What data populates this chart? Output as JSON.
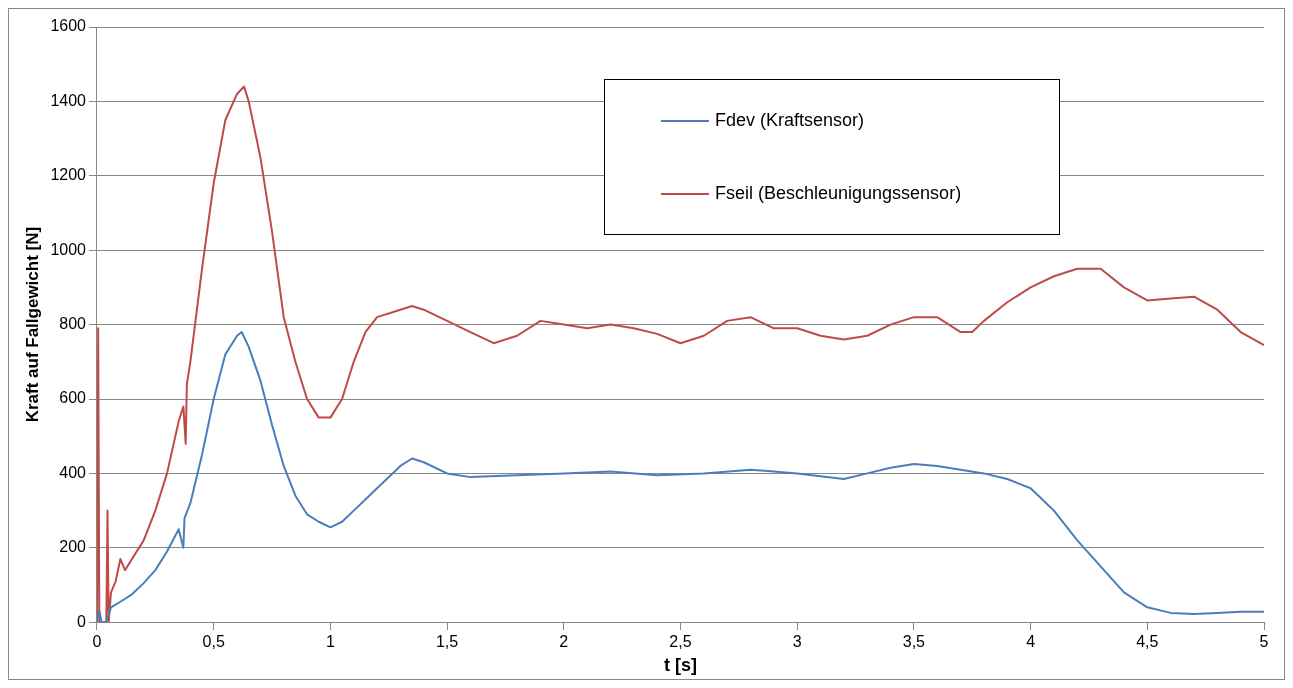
{
  "chart_data": {
    "type": "line",
    "xlabel": "t [s]",
    "ylabel": "Kraft auf Fallgewicht [N]",
    "xlim": [
      0,
      5
    ],
    "ylim": [
      0,
      1600
    ],
    "xticks": [
      0,
      {
        "value": 0.5,
        "label": "0,5"
      },
      1,
      {
        "value": 1.5,
        "label": "1,5"
      },
      2,
      {
        "value": 2.5,
        "label": "2,5"
      },
      3,
      {
        "value": 3.5,
        "label": "3,5"
      },
      4,
      {
        "value": 4.5,
        "label": "4,5"
      },
      5
    ],
    "yticks": [
      0,
      200,
      400,
      600,
      800,
      1000,
      1200,
      1400,
      1600
    ],
    "grid": "y",
    "legend": "top right",
    "marker": "none",
    "line_style": "solid",
    "series": [
      {
        "name": "Fdev (Kraftsensor)",
        "color": "#4a7ebb",
        "x": [
          0,
          0.01,
          0.02,
          0.04,
          0.06,
          0.1,
          0.15,
          0.2,
          0.25,
          0.3,
          0.35,
          0.37,
          0.375,
          0.4,
          0.45,
          0.5,
          0.55,
          0.6,
          0.62,
          0.65,
          0.7,
          0.75,
          0.8,
          0.85,
          0.9,
          0.95,
          1.0,
          1.05,
          1.1,
          1.2,
          1.3,
          1.35,
          1.4,
          1.5,
          1.6,
          1.8,
          2.0,
          2.2,
          2.4,
          2.6,
          2.8,
          3.0,
          3.2,
          3.3,
          3.4,
          3.5,
          3.6,
          3.7,
          3.8,
          3.9,
          4.0,
          4.1,
          4.2,
          4.3,
          4.4,
          4.5,
          4.6,
          4.7,
          4.8,
          4.9,
          5.0
        ],
        "values": [
          0,
          30,
          0,
          0,
          40,
          55,
          75,
          105,
          140,
          190,
          250,
          200,
          280,
          320,
          450,
          600,
          720,
          770,
          780,
          740,
          650,
          530,
          420,
          340,
          290,
          270,
          255,
          270,
          300,
          360,
          420,
          440,
          430,
          400,
          390,
          395,
          400,
          405,
          395,
          400,
          410,
          400,
          385,
          400,
          415,
          425,
          420,
          410,
          400,
          385,
          360,
          300,
          220,
          150,
          80,
          40,
          25,
          22,
          25,
          28,
          28
        ]
      },
      {
        "name": "Fseil (Beschleunigungssensor)",
        "color": "#be4b48",
        "x": [
          0,
          0.005,
          0.01,
          0.04,
          0.045,
          0.05,
          0.06,
          0.08,
          0.1,
          0.12,
          0.15,
          0.2,
          0.25,
          0.3,
          0.35,
          0.37,
          0.38,
          0.385,
          0.4,
          0.45,
          0.5,
          0.55,
          0.6,
          0.63,
          0.65,
          0.7,
          0.75,
          0.8,
          0.85,
          0.9,
          0.95,
          1.0,
          1.05,
          1.1,
          1.15,
          1.2,
          1.3,
          1.35,
          1.4,
          1.5,
          1.6,
          1.7,
          1.8,
          1.9,
          2.0,
          2.1,
          2.2,
          2.3,
          2.4,
          2.5,
          2.6,
          2.7,
          2.8,
          2.9,
          3.0,
          3.1,
          3.2,
          3.3,
          3.4,
          3.5,
          3.6,
          3.65,
          3.7,
          3.75,
          3.8,
          3.9,
          4.0,
          4.1,
          4.2,
          4.3,
          4.4,
          4.5,
          4.6,
          4.7,
          4.8,
          4.9,
          5.0
        ],
        "values": [
          0,
          790,
          0,
          0,
          300,
          0,
          80,
          110,
          170,
          140,
          170,
          220,
          300,
          400,
          540,
          580,
          480,
          640,
          700,
          950,
          1180,
          1350,
          1420,
          1440,
          1400,
          1250,
          1050,
          820,
          700,
          600,
          550,
          550,
          600,
          700,
          780,
          820,
          840,
          850,
          840,
          810,
          780,
          750,
          770,
          810,
          800,
          790,
          800,
          790,
          775,
          750,
          770,
          810,
          820,
          790,
          790,
          770,
          760,
          770,
          800,
          820,
          820,
          800,
          780,
          780,
          810,
          860,
          900,
          930,
          950,
          950,
          900,
          865,
          870,
          875,
          840,
          780,
          745
        ]
      }
    ]
  }
}
